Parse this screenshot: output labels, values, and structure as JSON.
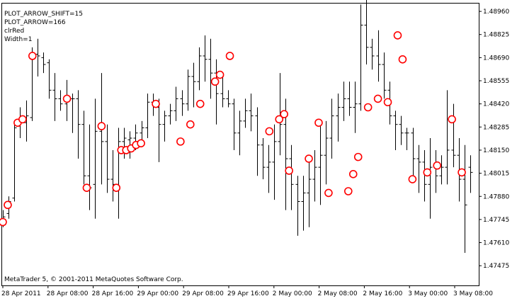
{
  "indicator_info": {
    "line1": "PLOT_ARROW_SHIFT=15",
    "line2": "PLOT_ARROW=166",
    "line3": "clrRed",
    "line4": "Width=1"
  },
  "copyright": "MetaTrader 5, © 2001-2011 MetaQuotes Software Corp.",
  "colors": {
    "bars": "#000000",
    "arrows": "#ff0000",
    "frame": "#000000",
    "background": "#ffffff"
  },
  "chart_data": {
    "type": "ohlc-bars",
    "y_ticks": [
      "1.48960",
      "1.48825",
      "1.48690",
      "1.48555",
      "1.48420",
      "1.48285",
      "1.48150",
      "1.48015",
      "1.47880",
      "1.47745",
      "1.47610",
      "1.47475"
    ],
    "x_ticks": [
      "28 Apr 2011",
      "28 Apr 08:00",
      "28 Apr 16:00",
      "29 Apr 00:00",
      "29 Apr 08:00",
      "29 Apr 16:00",
      "2 May 00:00",
      "2 May 08:00",
      "2 May 16:00",
      "3 May 00:00",
      "3 May 08:00"
    ],
    "ylim": [
      1.4736,
      1.4901
    ],
    "bars": [
      [
        1.4773,
        1.478,
        1.477,
        1.4776
      ],
      [
        1.4778,
        1.4788,
        1.4775,
        1.4785
      ],
      [
        1.4787,
        1.4832,
        1.4785,
        1.4828
      ],
      [
        1.4829,
        1.484,
        1.4822,
        1.4832
      ],
      [
        1.4831,
        1.4844,
        1.482,
        1.4835
      ],
      [
        1.4834,
        1.4875,
        1.4832,
        1.487
      ],
      [
        1.4871,
        1.488,
        1.4858,
        1.487
      ],
      [
        1.4869,
        1.4872,
        1.486,
        1.4865
      ],
      [
        1.4866,
        1.4868,
        1.4845,
        1.485
      ],
      [
        1.485,
        1.486,
        1.4832,
        1.4845
      ],
      [
        1.4845,
        1.485,
        1.4838,
        1.4842
      ],
      [
        1.4842,
        1.4856,
        1.4832,
        1.4845
      ],
      [
        1.4845,
        1.4848,
        1.4825,
        1.4845
      ],
      [
        1.4845,
        1.485,
        1.481,
        1.483
      ],
      [
        1.483,
        1.4838,
        1.4795,
        1.48
      ],
      [
        1.48,
        1.483,
        1.478,
        1.4793
      ],
      [
        1.4795,
        1.4845,
        1.4775,
        1.4826
      ],
      [
        1.4826,
        1.486,
        1.4795,
        1.482
      ],
      [
        1.482,
        1.483,
        1.479,
        1.4798
      ],
      [
        1.4798,
        1.4815,
        1.4785,
        1.4795
      ],
      [
        1.4795,
        1.4828,
        1.4775,
        1.482
      ],
      [
        1.482,
        1.4828,
        1.481,
        1.4822
      ],
      [
        1.4821,
        1.4826,
        1.481,
        1.4822
      ],
      [
        1.4822,
        1.483,
        1.4815,
        1.4825
      ],
      [
        1.4825,
        1.4832,
        1.4818,
        1.4828
      ],
      [
        1.4828,
        1.4848,
        1.4822,
        1.4843
      ],
      [
        1.4843,
        1.4848,
        1.4835,
        1.484
      ],
      [
        1.484,
        1.4845,
        1.4808,
        1.483
      ],
      [
        1.483,
        1.4838,
        1.482,
        1.4835
      ],
      [
        1.4835,
        1.4842,
        1.483,
        1.4838
      ],
      [
        1.4838,
        1.4852,
        1.4832,
        1.4845
      ],
      [
        1.4845,
        1.485,
        1.4835,
        1.4842
      ],
      [
        1.4842,
        1.4862,
        1.4838,
        1.4858
      ],
      [
        1.4858,
        1.4866,
        1.484,
        1.4855
      ],
      [
        1.4855,
        1.4875,
        1.485,
        1.487
      ],
      [
        1.487,
        1.4882,
        1.4855,
        1.4868
      ],
      [
        1.4868,
        1.488,
        1.4845,
        1.486
      ],
      [
        1.486,
        1.4868,
        1.483,
        1.4848
      ],
      [
        1.4848,
        1.4858,
        1.484,
        1.4845
      ],
      [
        1.4845,
        1.485,
        1.484,
        1.4842
      ],
      [
        1.4842,
        1.4845,
        1.4815,
        1.4825
      ],
      [
        1.4825,
        1.4838,
        1.4812,
        1.4832
      ],
      [
        1.4832,
        1.4845,
        1.4828,
        1.4838
      ],
      [
        1.4838,
        1.4848,
        1.4826,
        1.4835
      ],
      [
        1.4835,
        1.484,
        1.48,
        1.4818
      ],
      [
        1.4818,
        1.4822,
        1.4798,
        1.4805
      ],
      [
        1.4805,
        1.4818,
        1.479,
        1.4808
      ],
      [
        1.4808,
        1.483,
        1.4786,
        1.482
      ],
      [
        1.482,
        1.486,
        1.4812,
        1.483
      ],
      [
        1.483,
        1.4845,
        1.478,
        1.481
      ],
      [
        1.481,
        1.4818,
        1.478,
        1.4795
      ],
      [
        1.4795,
        1.48,
        1.4765,
        1.4785
      ],
      [
        1.4785,
        1.48,
        1.4768,
        1.479
      ],
      [
        1.479,
        1.481,
        1.477,
        1.4798
      ],
      [
        1.4798,
        1.4815,
        1.4785,
        1.4805
      ],
      [
        1.4805,
        1.483,
        1.4783,
        1.4812
      ],
      [
        1.4812,
        1.4832,
        1.4795,
        1.4822
      ],
      [
        1.4822,
        1.4845,
        1.481,
        1.4835
      ],
      [
        1.4835,
        1.4848,
        1.482,
        1.484
      ],
      [
        1.484,
        1.4855,
        1.4832,
        1.4845
      ],
      [
        1.4845,
        1.4855,
        1.4835,
        1.484
      ],
      [
        1.484,
        1.4855,
        1.4825,
        1.4842
      ],
      [
        1.4842,
        1.49,
        1.4838,
        1.4888
      ],
      [
        1.4888,
        1.4905,
        1.4865,
        1.4875
      ],
      [
        1.4875,
        1.488,
        1.4862,
        1.487
      ],
      [
        1.487,
        1.4885,
        1.4855,
        1.4865
      ],
      [
        1.4865,
        1.4872,
        1.4845,
        1.485
      ],
      [
        1.485,
        1.4855,
        1.483,
        1.4835
      ],
      [
        1.4835,
        1.4838,
        1.4815,
        1.483
      ],
      [
        1.483,
        1.4835,
        1.4818,
        1.4825
      ],
      [
        1.4825,
        1.4828,
        1.4815,
        1.4825
      ],
      [
        1.4825,
        1.4828,
        1.48,
        1.481
      ],
      [
        1.481,
        1.4818,
        1.479,
        1.4808
      ],
      [
        1.4808,
        1.4815,
        1.4785,
        1.4795
      ],
      [
        1.4795,
        1.4822,
        1.4775,
        1.4805
      ],
      [
        1.4805,
        1.4815,
        1.479,
        1.48
      ],
      [
        1.48,
        1.4812,
        1.4795,
        1.4805
      ],
      [
        1.4805,
        1.485,
        1.4795,
        1.4815
      ],
      [
        1.4815,
        1.4842,
        1.4805,
        1.4812
      ],
      [
        1.4812,
        1.4822,
        1.4785,
        1.4798
      ],
      [
        1.4798,
        1.4818,
        1.4755,
        1.4783
      ],
      [
        1.4805,
        1.4812,
        1.479,
        1.4802
      ]
    ],
    "arrows": [
      [
        0,
        1.4773
      ],
      [
        1,
        1.4783
      ],
      [
        2,
        1.4831
      ],
      [
        3,
        1.4833
      ],
      [
        5,
        1.487
      ],
      [
        11,
        1.4845
      ],
      [
        14,
        1.4793
      ],
      [
        16,
        1.4829
      ],
      [
        20,
        1.4793
      ],
      [
        21,
        1.4815
      ],
      [
        22,
        1.4815
      ],
      [
        23,
        1.4816
      ],
      [
        24,
        1.4818
      ],
      [
        25,
        1.4819
      ],
      [
        26,
        1.4842
      ],
      [
        27,
        1.482
      ],
      [
        28,
        1.483
      ],
      [
        29,
        1.4842
      ],
      [
        30,
        1.4855
      ],
      [
        31,
        1.4859
      ],
      [
        32,
        1.487
      ],
      [
        37,
        1.4826
      ],
      [
        38,
        1.4833
      ],
      [
        39,
        1.4836
      ],
      [
        40,
        1.4803
      ],
      [
        41,
        1.481
      ],
      [
        42,
        1.4831
      ],
      [
        43,
        1.479
      ],
      [
        44,
        1.4791
      ],
      [
        45,
        1.4801
      ],
      [
        46,
        1.4811
      ],
      [
        47,
        1.484
      ],
      [
        48,
        1.4845
      ],
      [
        49,
        1.4843
      ],
      [
        50,
        1.4882
      ],
      [
        51,
        1.4868
      ],
      [
        53,
        1.4798
      ],
      [
        54,
        1.4802
      ],
      [
        55,
        1.4806
      ],
      [
        56,
        1.4833
      ],
      [
        57,
        1.4802
      ]
    ],
    "arrow_slots": [
      0,
      1,
      3,
      4,
      6,
      13,
      17,
      20,
      23,
      24,
      25,
      26,
      27,
      28,
      31,
      36,
      38,
      40,
      43,
      44,
      46,
      54,
      56,
      57,
      58,
      62,
      64,
      66,
      70,
      71,
      72,
      74,
      76,
      78,
      80,
      81,
      83,
      86,
      88,
      91,
      93
    ]
  }
}
